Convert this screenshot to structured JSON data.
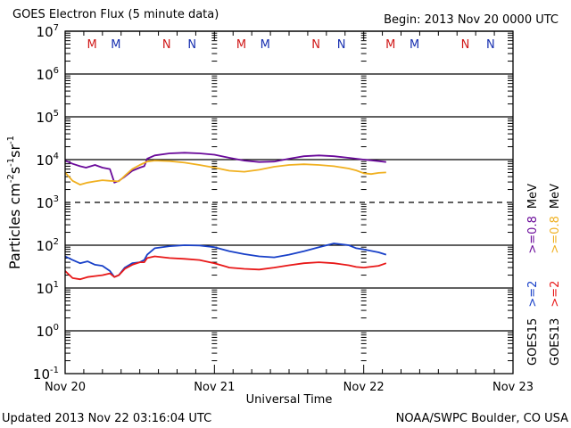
{
  "chart_data": {
    "type": "line",
    "title": "GOES Electron Flux (5 minute data)",
    "subtitle": "Begin: 2013 Nov 20 0000 UTC",
    "xlabel": "Universal Time",
    "ylabel": "Particles cm-2 s-1 sr-1",
    "ylabel_parts": {
      "base": "Particles cm",
      "e1": "-2",
      "s": "s",
      "e2": "-1",
      "sr": "sr",
      "e3": "-1"
    },
    "yscale": "log",
    "ylim": [
      0.1,
      10000000
    ],
    "xlim_days": [
      0,
      3
    ],
    "x_ticks": [
      "Nov 20",
      "Nov 21",
      "Nov 22",
      "Nov 23"
    ],
    "y_ticks": [
      {
        "base": "10",
        "exp": "7",
        "value": 10000000
      },
      {
        "base": "10",
        "exp": "6",
        "value": 1000000
      },
      {
        "base": "10",
        "exp": "5",
        "value": 100000
      },
      {
        "base": "10",
        "exp": "4",
        "value": 10000
      },
      {
        "base": "10",
        "exp": "3",
        "value": 1000
      },
      {
        "base": "10",
        "exp": "2",
        "value": 100
      },
      {
        "base": "10",
        "exp": "1",
        "value": 10
      },
      {
        "base": "10",
        "exp": "0",
        "value": 1
      },
      {
        "base": "10",
        "exp": "-1",
        "value": 0.1
      }
    ],
    "threshold_line": {
      "value": 1000,
      "style": "dashed"
    },
    "grid_lines": [
      10000000,
      1000000,
      100000,
      10000,
      100,
      10,
      1
    ],
    "local_time_markers": [
      {
        "label": "M",
        "day": 0.18,
        "color": "#d01818"
      },
      {
        "label": "M",
        "day": 0.34,
        "color": "#1830b0"
      },
      {
        "label": "N",
        "day": 0.68,
        "color": "#d01818"
      },
      {
        "label": "N",
        "day": 0.85,
        "color": "#1830b0"
      },
      {
        "label": "M",
        "day": 1.18,
        "color": "#d01818"
      },
      {
        "label": "M",
        "day": 1.34,
        "color": "#1830b0"
      },
      {
        "label": "N",
        "day": 1.68,
        "color": "#d01818"
      },
      {
        "label": "N",
        "day": 1.85,
        "color": "#1830b0"
      },
      {
        "label": "M",
        "day": 2.18,
        "color": "#d01818"
      },
      {
        "label": "M",
        "day": 2.34,
        "color": "#1830b0"
      },
      {
        "label": "N",
        "day": 2.68,
        "color": "#d01818"
      },
      {
        "label": "N",
        "day": 2.85,
        "color": "#1830b0"
      }
    ],
    "series": [
      {
        "name": "GOES15 >=0.8 MeV",
        "color": "#6a0a9a",
        "x": [
          0,
          0.05,
          0.1,
          0.14,
          0.2,
          0.25,
          0.3,
          0.33,
          0.36,
          0.4,
          0.45,
          0.5,
          0.53,
          0.55,
          0.6,
          0.7,
          0.8,
          0.9,
          1.0,
          1.1,
          1.2,
          1.3,
          1.4,
          1.5,
          1.6,
          1.7,
          1.8,
          1.9,
          1.95,
          2.0,
          2.1,
          2.15
        ],
        "y": [
          9500,
          8000,
          7000,
          6500,
          7500,
          6500,
          6000,
          2900,
          3200,
          4000,
          5500,
          6500,
          7000,
          10500,
          12500,
          14000,
          14500,
          14000,
          13000,
          11000,
          9500,
          8800,
          9000,
          10500,
          12000,
          12500,
          12000,
          11000,
          10500,
          10000,
          9200,
          8800
        ]
      },
      {
        "name": "GOES13 >=0.8 MeV",
        "color": "#f0b020",
        "x": [
          0,
          0.05,
          0.1,
          0.15,
          0.2,
          0.25,
          0.3,
          0.36,
          0.4,
          0.45,
          0.5,
          0.55,
          0.6,
          0.7,
          0.8,
          0.9,
          1.0,
          1.1,
          1.2,
          1.3,
          1.4,
          1.5,
          1.6,
          1.7,
          1.8,
          1.9,
          1.95,
          2.0,
          2.05,
          2.1,
          2.15
        ],
        "y": [
          5000,
          3200,
          2600,
          2900,
          3100,
          3300,
          3200,
          3100,
          4200,
          6000,
          7500,
          9000,
          9500,
          9200,
          8500,
          7500,
          6500,
          5500,
          5200,
          5800,
          6800,
          7500,
          7800,
          7500,
          7000,
          6200,
          5600,
          4800,
          4600,
          4900,
          5000
        ]
      },
      {
        "name": "GOES15 >=2",
        "color": "#1840c8",
        "x": [
          0,
          0.05,
          0.1,
          0.15,
          0.2,
          0.25,
          0.3,
          0.33,
          0.36,
          0.4,
          0.45,
          0.5,
          0.53,
          0.55,
          0.6,
          0.7,
          0.8,
          0.9,
          1.0,
          1.1,
          1.2,
          1.3,
          1.4,
          1.5,
          1.6,
          1.7,
          1.8,
          1.9,
          1.95,
          2.0,
          2.1,
          2.15
        ],
        "y": [
          55,
          45,
          38,
          42,
          35,
          33,
          25,
          18,
          20,
          30,
          38,
          40,
          45,
          60,
          85,
          95,
          100,
          98,
          90,
          72,
          62,
          55,
          52,
          60,
          72,
          90,
          110,
          100,
          85,
          80,
          68,
          60
        ]
      },
      {
        "name": "GOES13 >=2",
        "color": "#e81818",
        "x": [
          0,
          0.05,
          0.1,
          0.15,
          0.2,
          0.25,
          0.3,
          0.33,
          0.36,
          0.4,
          0.45,
          0.5,
          0.53,
          0.55,
          0.6,
          0.7,
          0.8,
          0.9,
          1.0,
          1.1,
          1.2,
          1.3,
          1.4,
          1.5,
          1.6,
          1.7,
          1.8,
          1.9,
          1.95,
          2.0,
          2.1,
          2.15
        ],
        "y": [
          25,
          17,
          16,
          18,
          19,
          20,
          22,
          18,
          20,
          28,
          35,
          40,
          40,
          50,
          55,
          50,
          48,
          45,
          38,
          30,
          28,
          27,
          30,
          34,
          38,
          40,
          38,
          34,
          31,
          30,
          33,
          38
        ]
      }
    ],
    "legend": {
      "placement": "right",
      "groups": [
        {
          "satellite": "GOES15",
          "items": [
            {
              "text": ">=2",
              "color": "#1840c8"
            },
            {
              "text": ">=0.8",
              "color": "#6a0a9a"
            }
          ]
        },
        {
          "satellite": "GOES13",
          "items": [
            {
              "text": ">=2",
              "color": "#e81818"
            },
            {
              "text": ">=0.8",
              "color": "#f0b020"
            }
          ]
        }
      ],
      "unit": "MeV"
    }
  },
  "footer": {
    "updated": "Updated 2013 Nov 22 03:16:04 UTC",
    "credit": "NOAA/SWPC Boulder, CO USA"
  }
}
